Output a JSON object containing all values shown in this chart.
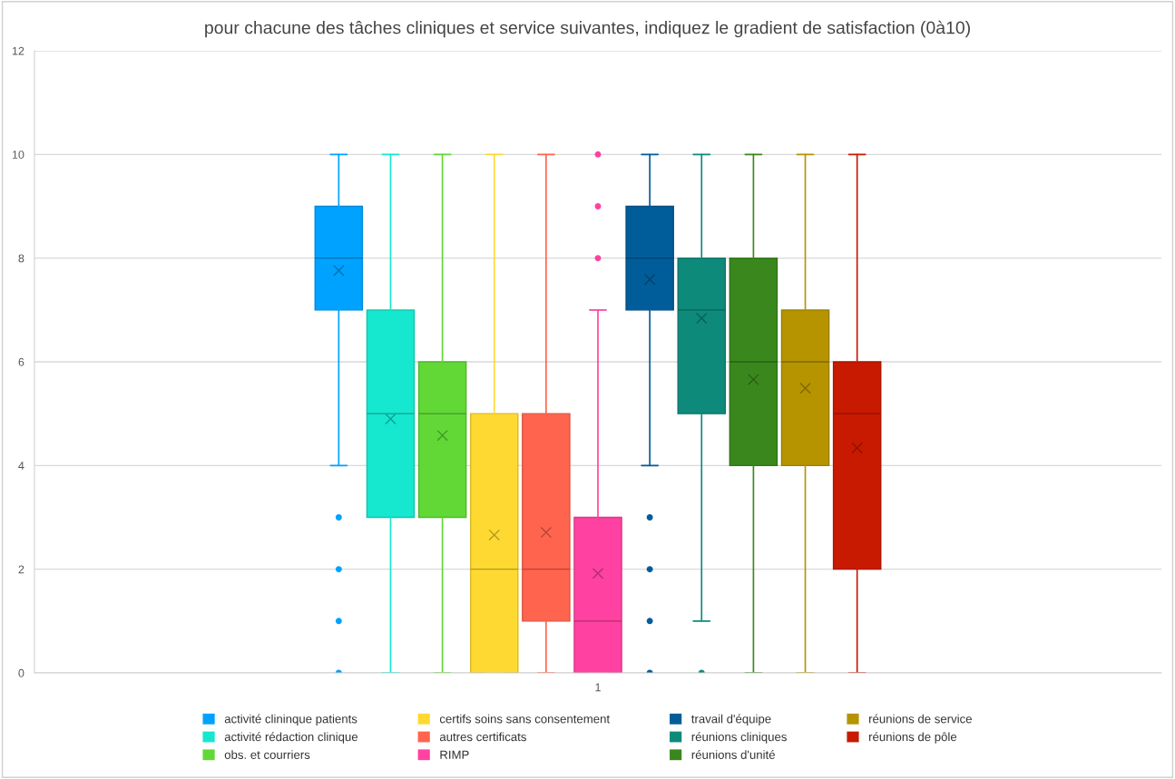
{
  "chart_data": {
    "type": "box",
    "title": "pour chacune des tâches cliniques et service suivantes, indiquez le gradient de satisfaction (0à10)",
    "categories": [
      "1"
    ],
    "series": [
      {
        "name": "activité clininque patients",
        "color": "#00a2ff",
        "boxes": [
          {
            "low": 4,
            "q1": 7,
            "median": 8,
            "q3": 9,
            "high": 10,
            "mean": 7.76,
            "outliers": [
              0,
              1,
              2,
              3
            ]
          }
        ]
      },
      {
        "name": "activité rédaction clinique",
        "color": "#16e7cf",
        "boxes": [
          {
            "low": 0,
            "q1": 3,
            "median": 5,
            "q3": 7,
            "high": 10,
            "mean": 4.9
          }
        ]
      },
      {
        "name": "obs. et courriers",
        "color": "#61d836",
        "boxes": [
          {
            "low": 0,
            "q1": 3,
            "median": 5,
            "q3": 6,
            "high": 10,
            "mean": 4.58
          }
        ]
      },
      {
        "name": "certifs soins sans consentement",
        "color": "#fed931",
        "boxes": [
          {
            "low": 0,
            "q1": 0,
            "median": 2,
            "q3": 5,
            "high": 10,
            "mean": 2.66
          }
        ]
      },
      {
        "name": "autres certificats",
        "color": "#ff644e",
        "boxes": [
          {
            "low": 0,
            "q1": 1,
            "median": 2,
            "q3": 5,
            "high": 10,
            "mean": 2.71
          }
        ]
      },
      {
        "name": "RIMP",
        "color": "#ff42a1",
        "boxes": [
          {
            "low": 0,
            "q1": 0,
            "median": 1,
            "q3": 3,
            "high": 7,
            "mean": 1.92,
            "outliers": [
              8,
              9,
              10
            ]
          }
        ]
      },
      {
        "name": "travail d'équipe",
        "color": "#005d9a",
        "boxes": [
          {
            "low": 4,
            "q1": 7,
            "median": 8,
            "q3": 9,
            "high": 10,
            "mean": 7.59,
            "outliers": [
              0,
              1,
              2,
              3
            ]
          }
        ]
      },
      {
        "name": "réunions cliniques",
        "color": "#0e8a7b",
        "boxes": [
          {
            "low": 1,
            "q1": 5,
            "median": 7,
            "q3": 8,
            "high": 10,
            "mean": 6.84,
            "outliers": [
              0
            ]
          }
        ]
      },
      {
        "name": "réunions d'unité",
        "color": "#3a881d",
        "boxes": [
          {
            "low": 0,
            "q1": 4,
            "median": 6,
            "q3": 8,
            "high": 10,
            "mean": 5.66
          }
        ]
      },
      {
        "name": "réunions de service",
        "color": "#b59400",
        "boxes": [
          {
            "low": 0,
            "q1": 4,
            "median": 6,
            "q3": 7,
            "high": 10,
            "mean": 5.49
          }
        ]
      },
      {
        "name": "réunions de pôle",
        "color": "#c81a00",
        "boxes": [
          {
            "low": 0,
            "q1": 2,
            "median": 5,
            "q3": 6,
            "high": 10,
            "mean": 4.34
          }
        ]
      }
    ],
    "ylim": [
      0,
      12
    ],
    "yticks": [
      0,
      2,
      4,
      6,
      8,
      10,
      12
    ],
    "grid": "y",
    "legend": "bottom"
  }
}
